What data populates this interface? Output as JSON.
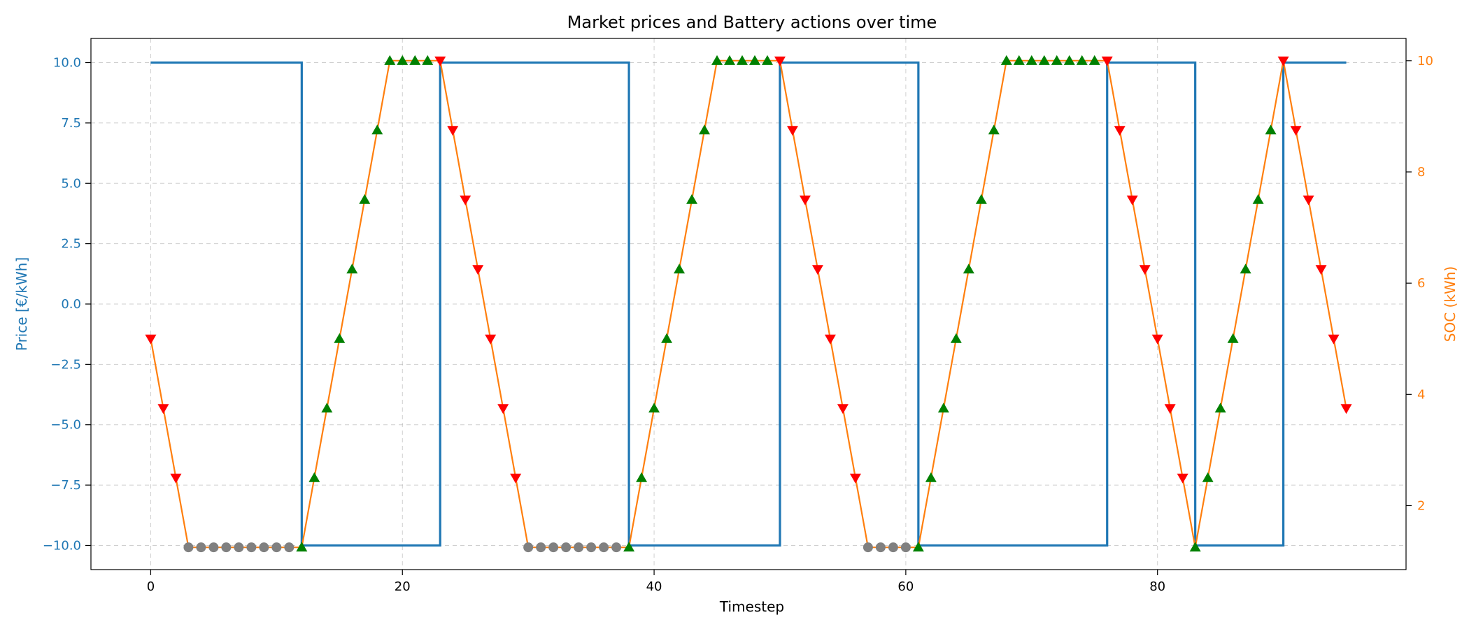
{
  "chart_data": {
    "type": "line",
    "title": "Market prices and Battery actions over time",
    "xlabel": "Timestep",
    "ylabel_left": "Price [€/kWh]",
    "ylabel_right": "SOC (kWh)",
    "xlim": [
      -4.75,
      99.75
    ],
    "ylim_left": [
      -11,
      11
    ],
    "ylim_right": [
      0.85,
      10.4
    ],
    "x_ticks": [
      0,
      20,
      40,
      60,
      80
    ],
    "y_ticks_left": [
      10.0,
      7.5,
      5.0,
      2.5,
      0.0,
      -2.5,
      -5.0,
      -7.5,
      -10.0
    ],
    "y_tick_labels_left": [
      "10.0",
      "7.5",
      "5.0",
      "2.5",
      "0.0",
      "−2.5",
      "−5.0",
      "−7.5",
      "−10.0"
    ],
    "y_ticks_right": [
      2,
      4,
      6,
      8,
      10
    ],
    "grid": true,
    "colors": {
      "price": "#1f77b4",
      "soc": "#ff7f0e",
      "charge": "#008000",
      "discharge": "#ff0000",
      "idle": "#808080"
    },
    "series": [
      {
        "axis": "left",
        "style": "step-post",
        "change_points": [
          {
            "x": 0,
            "y": 10
          },
          {
            "x": 12,
            "y": -10
          },
          {
            "x": 23,
            "y": 10
          },
          {
            "x": 38,
            "y": -10
          },
          {
            "x": 50,
            "y": 10
          },
          {
            "x": 61,
            "y": -10
          },
          {
            "x": 76,
            "y": 10
          },
          {
            "x": 83,
            "y": -10
          },
          {
            "x": 90,
            "y": 10
          }
        ],
        "x_end": 95
      },
      {
        "axis": "right",
        "style": "line",
        "marker_legend": {
          "charge": "triangle-up",
          "discharge": "triangle-down",
          "idle": "circle"
        },
        "values": [
          5.0,
          3.75,
          2.5,
          1.25,
          1.25,
          1.25,
          1.25,
          1.25,
          1.25,
          1.25,
          1.25,
          1.25,
          1.25,
          2.5,
          3.75,
          5.0,
          6.25,
          7.5,
          8.75,
          10.0,
          10.0,
          10.0,
          10.0,
          10.0,
          8.75,
          7.5,
          6.25,
          5.0,
          3.75,
          2.5,
          1.25,
          1.25,
          1.25,
          1.25,
          1.25,
          1.25,
          1.25,
          1.25,
          1.25,
          2.5,
          3.75,
          5.0,
          6.25,
          7.5,
          8.75,
          10.0,
          10.0,
          10.0,
          10.0,
          10.0,
          10.0,
          8.75,
          7.5,
          6.25,
          5.0,
          3.75,
          2.5,
          1.25,
          1.25,
          1.25,
          1.25,
          1.25,
          2.5,
          3.75,
          5.0,
          6.25,
          7.5,
          8.75,
          10.0,
          10.0,
          10.0,
          10.0,
          10.0,
          10.0,
          10.0,
          10.0,
          10.0,
          8.75,
          7.5,
          6.25,
          5.0,
          3.75,
          2.5,
          1.25,
          2.5,
          3.75,
          5.0,
          6.25,
          7.5,
          8.75,
          10.0,
          8.75,
          7.5,
          6.25,
          5.0,
          3.75
        ],
        "actions": [
          "D",
          "D",
          "D",
          "I",
          "I",
          "I",
          "I",
          "I",
          "I",
          "I",
          "I",
          "I",
          "C",
          "C",
          "C",
          "C",
          "C",
          "C",
          "C",
          "C",
          "C",
          "C",
          "C",
          "D",
          "D",
          "D",
          "D",
          "D",
          "D",
          "D",
          "I",
          "I",
          "I",
          "I",
          "I",
          "I",
          "I",
          "I",
          "C",
          "C",
          "C",
          "C",
          "C",
          "C",
          "C",
          "C",
          "C",
          "C",
          "C",
          "C",
          "D",
          "D",
          "D",
          "D",
          "D",
          "D",
          "D",
          "I",
          "I",
          "I",
          "I",
          "C",
          "C",
          "C",
          "C",
          "C",
          "C",
          "C",
          "C",
          "C",
          "C",
          "C",
          "C",
          "C",
          "C",
          "C",
          "D",
          "D",
          "D",
          "D",
          "D",
          "D",
          "D",
          "C",
          "C",
          "C",
          "C",
          "C",
          "C",
          "C",
          "D",
          "D",
          "D",
          "D",
          "D",
          "D"
        ]
      }
    ]
  }
}
